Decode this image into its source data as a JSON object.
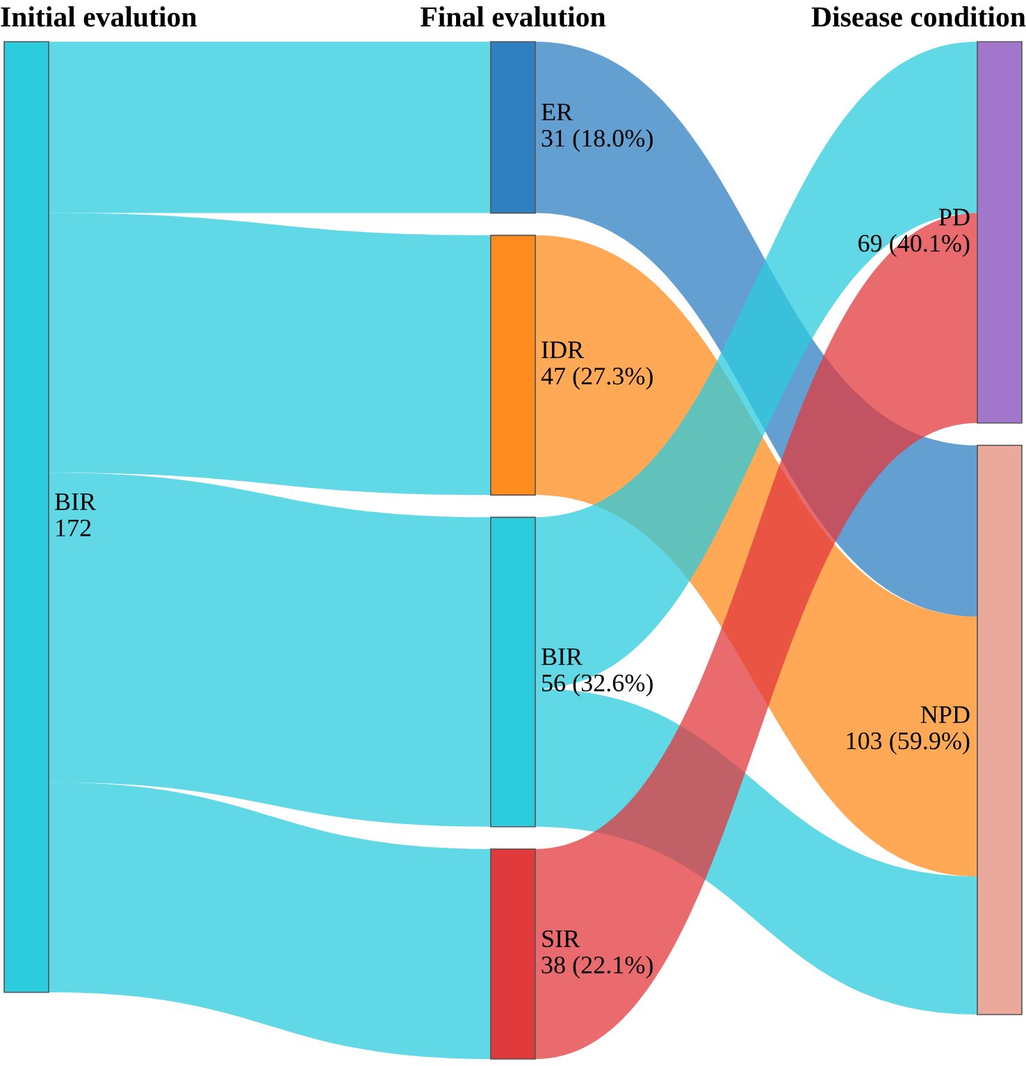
{
  "chart_data": {
    "type": "other",
    "annotations": [
      "Initial evalution",
      "Final evalution",
      "Disease condition"
    ],
    "categories": [
      "BIR",
      "ER",
      "IDR",
      "BIR",
      "SIR",
      "PD",
      "NPD"
    ],
    "values": [
      172,
      31,
      47,
      56,
      38,
      69,
      103
    ],
    "value_labels": [
      "172",
      "31 (18.0%)",
      "47 (27.3%)",
      "56 (32.6%)",
      "38 (22.1%)",
      "69 (40.1%)",
      "103 (59.9%)"
    ],
    "colors": [
      "#2ccbdd",
      "#2f7fc1",
      "#ff8c1e",
      "#2ccbdd",
      "#e13a3c",
      "#a276cb",
      "#eaa99b"
    ],
    "cells": [
      [
        null,
        true,
        true,
        true,
        true,
        null,
        null
      ],
      [
        null,
        null,
        null,
        null,
        null,
        null,
        true
      ],
      [
        null,
        null,
        null,
        null,
        null,
        null,
        true
      ],
      [
        null,
        null,
        null,
        null,
        null,
        true,
        true
      ],
      [
        null,
        null,
        null,
        null,
        null,
        true,
        null
      ],
      [
        null,
        null,
        null,
        null,
        null,
        null,
        null
      ],
      [
        null,
        null,
        null,
        null,
        null,
        null,
        null
      ]
    ]
  }
}
